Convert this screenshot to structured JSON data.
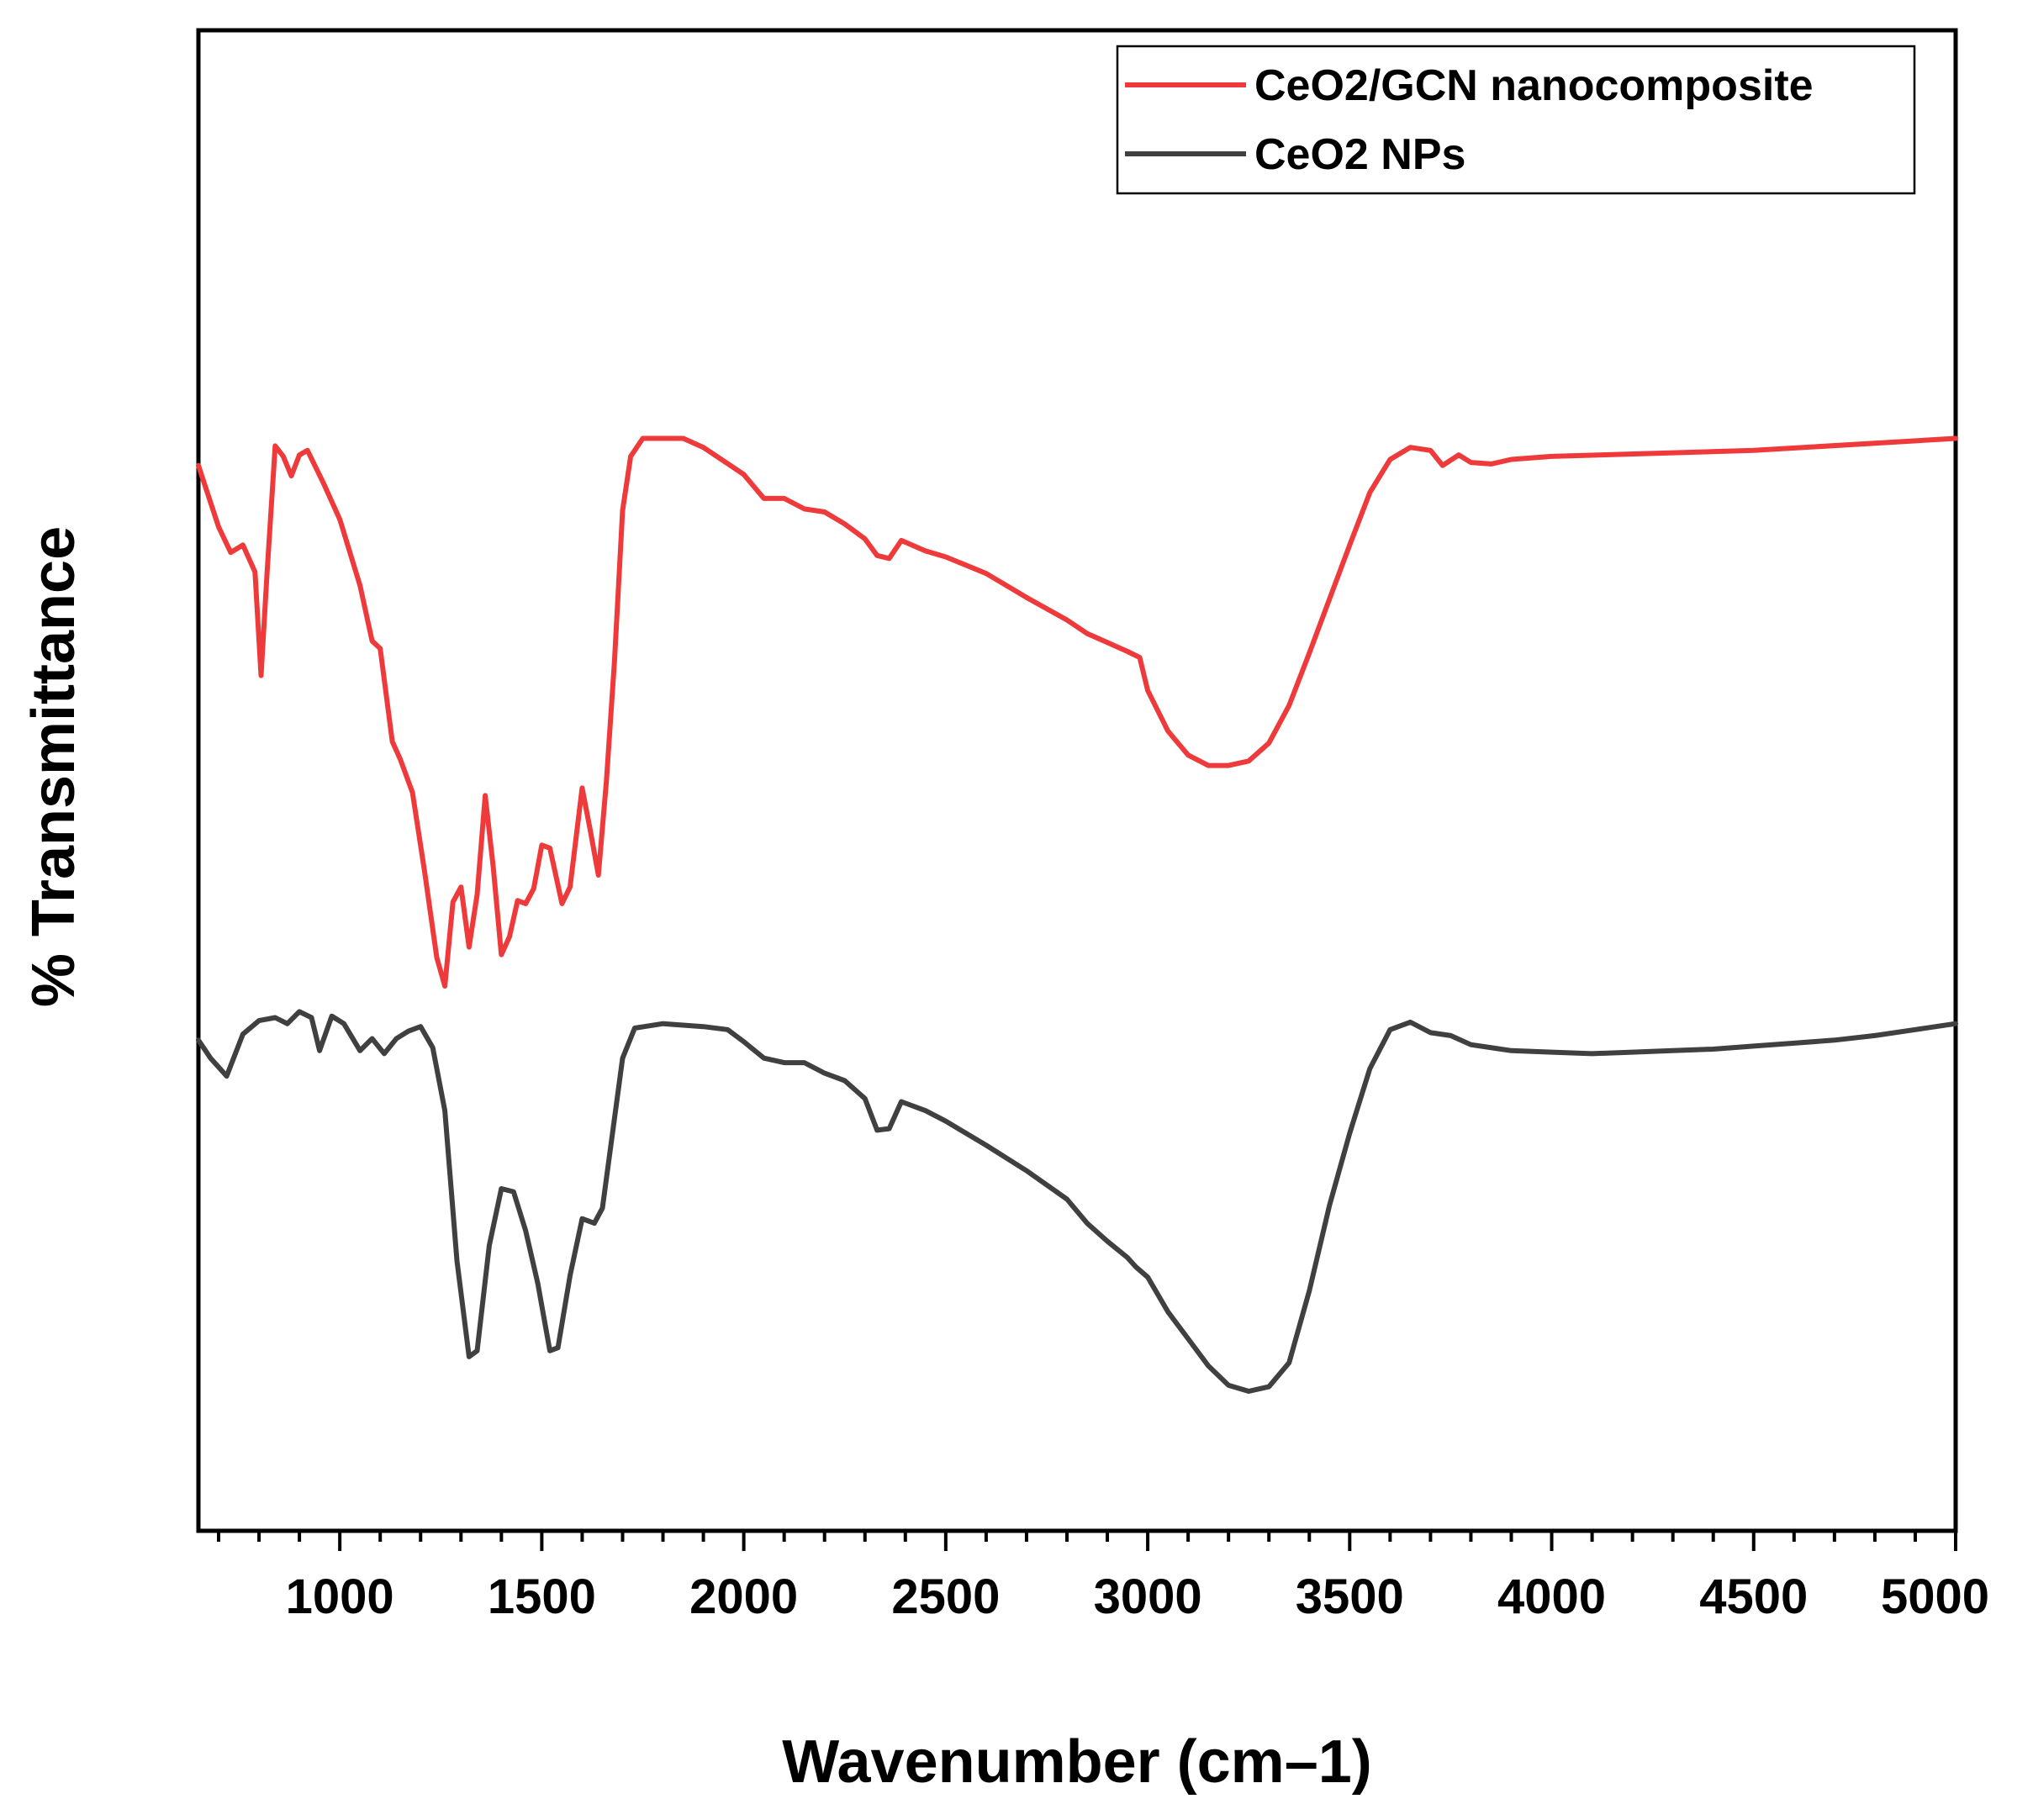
{
  "chart_data": {
    "type": "line",
    "title": "",
    "xlabel": "Wavenumber (cm–1)",
    "ylabel": "% Transmittance",
    "xlim": [
      650,
      5000
    ],
    "ylim": [
      0,
      100
    ],
    "xticks": [
      1000,
      1500,
      2000,
      2500,
      3000,
      3500,
      4000,
      4500,
      5000
    ],
    "xtick_labels": [
      "1000",
      "1500",
      "2000",
      "2500",
      "3000",
      "3500",
      "4000",
      "4500",
      "5000"
    ],
    "yticks_shown": false,
    "grid": false,
    "legend_position": "top-right",
    "series": [
      {
        "name": "CeO2/GCN nanocomposite",
        "color": "#ee3a3a",
        "points": [
          [
            650,
            71.0
          ],
          [
            700,
            66.9
          ],
          [
            730,
            65.2
          ],
          [
            760,
            65.7
          ],
          [
            790,
            63.9
          ],
          [
            805,
            57.0
          ],
          [
            820,
            63.9
          ],
          [
            840,
            72.3
          ],
          [
            860,
            71.6
          ],
          [
            880,
            70.3
          ],
          [
            900,
            71.7
          ],
          [
            920,
            72.0
          ],
          [
            960,
            69.8
          ],
          [
            1000,
            67.4
          ],
          [
            1050,
            63.0
          ],
          [
            1080,
            59.3
          ],
          [
            1100,
            58.8
          ],
          [
            1130,
            52.6
          ],
          [
            1150,
            51.4
          ],
          [
            1180,
            49.2
          ],
          [
            1210,
            43.9
          ],
          [
            1240,
            38.2
          ],
          [
            1260,
            36.3
          ],
          [
            1280,
            41.9
          ],
          [
            1300,
            42.9
          ],
          [
            1320,
            38.9
          ],
          [
            1340,
            42.4
          ],
          [
            1360,
            49.0
          ],
          [
            1380,
            44.2
          ],
          [
            1400,
            38.4
          ],
          [
            1420,
            39.6
          ],
          [
            1440,
            42.0
          ],
          [
            1460,
            41.8
          ],
          [
            1480,
            42.8
          ],
          [
            1500,
            45.7
          ],
          [
            1520,
            45.5
          ],
          [
            1550,
            41.8
          ],
          [
            1570,
            42.9
          ],
          [
            1600,
            49.5
          ],
          [
            1620,
            46.7
          ],
          [
            1640,
            43.7
          ],
          [
            1660,
            50.0
          ],
          [
            1680,
            58.0
          ],
          [
            1700,
            68.0
          ],
          [
            1720,
            71.6
          ],
          [
            1750,
            72.8
          ],
          [
            1800,
            72.8
          ],
          [
            1850,
            72.8
          ],
          [
            1900,
            72.2
          ],
          [
            1950,
            71.3
          ],
          [
            2000,
            70.4
          ],
          [
            2050,
            68.8
          ],
          [
            2100,
            68.8
          ],
          [
            2150,
            68.1
          ],
          [
            2200,
            67.9
          ],
          [
            2250,
            67.1
          ],
          [
            2300,
            66.1
          ],
          [
            2330,
            65.0
          ],
          [
            2360,
            64.8
          ],
          [
            2390,
            66.0
          ],
          [
            2450,
            65.3
          ],
          [
            2500,
            64.9
          ],
          [
            2600,
            63.8
          ],
          [
            2700,
            62.2
          ],
          [
            2800,
            60.7
          ],
          [
            2850,
            59.8
          ],
          [
            2900,
            59.2
          ],
          [
            2950,
            58.6
          ],
          [
            2980,
            58.2
          ],
          [
            3000,
            56.0
          ],
          [
            3050,
            53.3
          ],
          [
            3100,
            51.7
          ],
          [
            3150,
            51.0
          ],
          [
            3200,
            51.0
          ],
          [
            3250,
            51.3
          ],
          [
            3300,
            52.5
          ],
          [
            3350,
            55.0
          ],
          [
            3400,
            58.5
          ],
          [
            3450,
            62.1
          ],
          [
            3500,
            65.7
          ],
          [
            3550,
            69.2
          ],
          [
            3600,
            71.4
          ],
          [
            3650,
            72.2
          ],
          [
            3700,
            72.0
          ],
          [
            3730,
            71.0
          ],
          [
            3770,
            71.7
          ],
          [
            3800,
            71.2
          ],
          [
            3850,
            71.1
          ],
          [
            3900,
            71.4
          ],
          [
            4000,
            71.6
          ],
          [
            4500,
            72.0
          ],
          [
            5000,
            72.8
          ]
        ]
      },
      {
        "name": "CeO2 NPs",
        "color": "#404040",
        "points": [
          [
            650,
            32.7
          ],
          [
            680,
            31.5
          ],
          [
            720,
            30.3
          ],
          [
            760,
            33.1
          ],
          [
            800,
            34.0
          ],
          [
            840,
            34.2
          ],
          [
            870,
            33.8
          ],
          [
            900,
            34.6
          ],
          [
            930,
            34.2
          ],
          [
            950,
            32.0
          ],
          [
            980,
            34.3
          ],
          [
            1010,
            33.8
          ],
          [
            1050,
            32.0
          ],
          [
            1080,
            32.8
          ],
          [
            1110,
            31.8
          ],
          [
            1140,
            32.8
          ],
          [
            1170,
            33.3
          ],
          [
            1200,
            33.6
          ],
          [
            1230,
            32.2
          ],
          [
            1260,
            28.0
          ],
          [
            1290,
            18.0
          ],
          [
            1320,
            11.6
          ],
          [
            1340,
            12.0
          ],
          [
            1370,
            19.0
          ],
          [
            1400,
            22.8
          ],
          [
            1430,
            22.6
          ],
          [
            1460,
            20.0
          ],
          [
            1490,
            16.5
          ],
          [
            1520,
            12.0
          ],
          [
            1540,
            12.2
          ],
          [
            1570,
            17.0
          ],
          [
            1600,
            20.8
          ],
          [
            1630,
            20.5
          ],
          [
            1650,
            21.5
          ],
          [
            1680,
            27.5
          ],
          [
            1700,
            31.5
          ],
          [
            1730,
            33.5
          ],
          [
            1800,
            33.8
          ],
          [
            1900,
            33.6
          ],
          [
            1960,
            33.4
          ],
          [
            2000,
            32.6
          ],
          [
            2050,
            31.5
          ],
          [
            2100,
            31.2
          ],
          [
            2150,
            31.2
          ],
          [
            2200,
            30.5
          ],
          [
            2250,
            30.0
          ],
          [
            2300,
            28.8
          ],
          [
            2330,
            26.7
          ],
          [
            2360,
            26.8
          ],
          [
            2390,
            28.6
          ],
          [
            2450,
            28.0
          ],
          [
            2500,
            27.3
          ],
          [
            2600,
            25.7
          ],
          [
            2700,
            24.0
          ],
          [
            2800,
            22.1
          ],
          [
            2850,
            20.5
          ],
          [
            2900,
            19.3
          ],
          [
            2950,
            18.2
          ],
          [
            2970,
            17.6
          ],
          [
            3000,
            16.9
          ],
          [
            3050,
            14.6
          ],
          [
            3100,
            12.8
          ],
          [
            3150,
            11.0
          ],
          [
            3200,
            9.7
          ],
          [
            3250,
            9.3
          ],
          [
            3300,
            9.6
          ],
          [
            3350,
            11.2
          ],
          [
            3400,
            16.0
          ],
          [
            3450,
            21.7
          ],
          [
            3500,
            26.5
          ],
          [
            3550,
            30.8
          ],
          [
            3600,
            33.4
          ],
          [
            3650,
            33.9
          ],
          [
            3700,
            33.2
          ],
          [
            3750,
            33.0
          ],
          [
            3800,
            32.4
          ],
          [
            3900,
            32.0
          ],
          [
            4000,
            31.9
          ],
          [
            4100,
            31.8
          ],
          [
            4200,
            31.9
          ],
          [
            4300,
            32.0
          ],
          [
            4400,
            32.1
          ],
          [
            4500,
            32.3
          ],
          [
            4600,
            32.5
          ],
          [
            4700,
            32.7
          ],
          [
            4800,
            33.0
          ],
          [
            4900,
            33.4
          ],
          [
            5000,
            33.8
          ]
        ]
      }
    ]
  }
}
